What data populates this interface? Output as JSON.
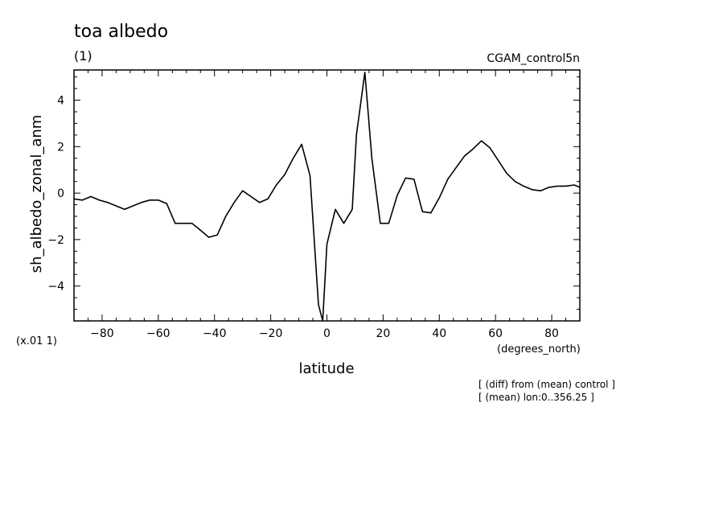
{
  "chart_data": {
    "type": "line",
    "title": "toa albedo",
    "subtitle": "(1)",
    "run_label": "CGAM_control5n",
    "xlabel": "latitude",
    "x_units": "(degrees_north)",
    "ylabel": "sh_albedo_zonal_anm",
    "y_scale_note": "(x.01 1)",
    "footnotes": [
      "[ (diff) from (mean) control ]",
      "[ (mean) lon:0..356.25 ]"
    ],
    "xlim": [
      -90,
      90
    ],
    "ylim": [
      -5.5,
      5.3
    ],
    "x_ticks": [
      -80,
      -60,
      -40,
      -20,
      0,
      20,
      40,
      60,
      80
    ],
    "y_ticks": [
      -4,
      -2,
      0,
      2,
      4
    ],
    "grid": false,
    "series": [
      {
        "color": "#000000",
        "x": [
          -90,
          -87,
          -84,
          -81,
          -78,
          -75,
          -72,
          -69,
          -66,
          -63,
          -60,
          -57,
          -54,
          -51,
          -48,
          -45,
          -42,
          -39,
          -36,
          -33,
          -30,
          -27,
          -24,
          -21,
          -18,
          -15,
          -12,
          -9,
          -6,
          -3,
          -1.5,
          0,
          3,
          6,
          9,
          10.5,
          13.5,
          16,
          19,
          22,
          25,
          28,
          31,
          34,
          37,
          40,
          43,
          46,
          49,
          52,
          55,
          58,
          61,
          64,
          67,
          70,
          73,
          76,
          79,
          82,
          85,
          88,
          90
        ],
        "y": [
          -0.25,
          -0.3,
          -0.15,
          -0.3,
          -0.4,
          -0.55,
          -0.7,
          -0.55,
          -0.4,
          -0.3,
          -0.3,
          -0.45,
          -1.3,
          -1.3,
          -1.3,
          -1.6,
          -1.9,
          -1.8,
          -1.0,
          -0.4,
          0.1,
          -0.15,
          -0.4,
          -0.25,
          0.35,
          0.8,
          1.5,
          2.1,
          0.75,
          -4.8,
          -5.5,
          -2.2,
          -0.7,
          -1.3,
          -0.7,
          2.5,
          5.2,
          1.5,
          -1.3,
          -1.3,
          -0.1,
          0.65,
          0.6,
          -0.8,
          -0.85,
          -0.2,
          0.6,
          1.1,
          1.6,
          1.9,
          2.25,
          1.95,
          1.4,
          0.85,
          0.5,
          0.3,
          0.15,
          0.1,
          0.25,
          0.3,
          0.3,
          0.35,
          0.25
        ]
      }
    ]
  }
}
